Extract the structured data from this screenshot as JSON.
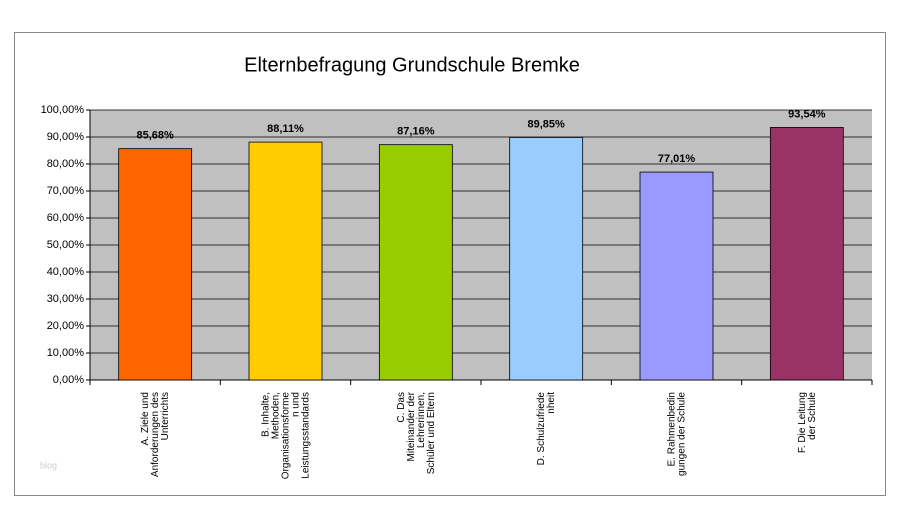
{
  "chart_data": {
    "type": "bar",
    "title": "Elternbefragung Grundschule Bremke",
    "categories": [
      "A.    Ziele und\nAnforderungen des\nUnterrichts",
      "B.    Inhalte,\nMethoden,\nOrganisationsforme\nn und\nLeistungsstandards",
      "C.    Das\nMiteinander der\nLehrerinnen,\nSchüler und Eltern",
      "D.    Schulzufriede\nnheit",
      "E.    Rahmenbedin\ngungen der Schule",
      "F.    Die Leitung\nder Schule"
    ],
    "values": [
      85.68,
      88.11,
      87.16,
      89.85,
      77.01,
      93.54
    ],
    "value_labels": [
      "85,68%",
      "88,11%",
      "87,16%",
      "89,85%",
      "77,01%",
      "93,54%"
    ],
    "colors": [
      "#ff6600",
      "#ffcc00",
      "#99cc00",
      "#99ccff",
      "#9999ff",
      "#993366"
    ],
    "ylim": [
      0,
      100
    ],
    "yticks": [
      {
        "value": 0,
        "label": "0,00%"
      },
      {
        "value": 10,
        "label": "10,00%"
      },
      {
        "value": 20,
        "label": "20,00%"
      },
      {
        "value": 30,
        "label": "30,00%"
      },
      {
        "value": 40,
        "label": "40,00%"
      },
      {
        "value": 50,
        "label": "50,00%"
      },
      {
        "value": 60,
        "label": "60,00%"
      },
      {
        "value": 70,
        "label": "70,00%"
      },
      {
        "value": 80,
        "label": "80,00%"
      },
      {
        "value": 90,
        "label": "90,00%"
      },
      {
        "value": 100,
        "label": "100,00%"
      }
    ],
    "grid": true,
    "watermark": "blog"
  }
}
